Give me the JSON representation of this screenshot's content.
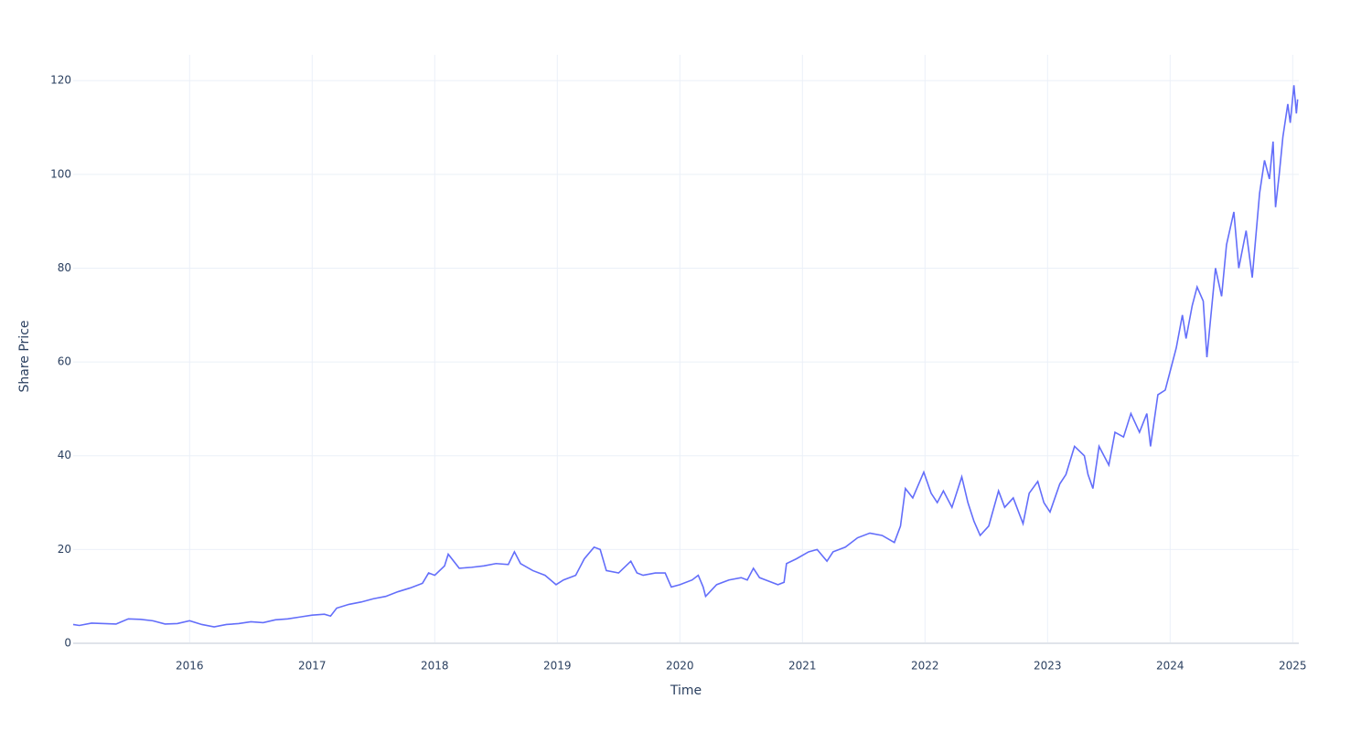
{
  "chart_data": {
    "type": "line",
    "x_label": "Time",
    "y_label": "Share Price",
    "xlim": [
      2015.05,
      2025.05
    ],
    "ylim": [
      0,
      125.5
    ],
    "xticks": [
      2016,
      2017,
      2018,
      2019,
      2020,
      2021,
      2022,
      2023,
      2024,
      2025
    ],
    "yticks": [
      0,
      20,
      40,
      60,
      80,
      100,
      120
    ],
    "grid": true,
    "x": [
      2015.05,
      2015.1,
      2015.2,
      2015.3,
      2015.4,
      2015.5,
      2015.6,
      2015.7,
      2015.8,
      2015.9,
      2016.0,
      2016.1,
      2016.2,
      2016.3,
      2016.4,
      2016.5,
      2016.6,
      2016.7,
      2016.8,
      2016.9,
      2017.0,
      2017.1,
      2017.15,
      2017.2,
      2017.3,
      2017.4,
      2017.5,
      2017.6,
      2017.7,
      2017.8,
      2017.9,
      2017.95,
      2018.0,
      2018.08,
      2018.11,
      2018.2,
      2018.3,
      2018.4,
      2018.5,
      2018.6,
      2018.65,
      2018.7,
      2018.8,
      2018.9,
      2018.99,
      2019.05,
      2019.15,
      2019.22,
      2019.3,
      2019.35,
      2019.4,
      2019.5,
      2019.6,
      2019.65,
      2019.7,
      2019.8,
      2019.88,
      2019.93,
      2020.0,
      2020.1,
      2020.15,
      2020.19,
      2020.21,
      2020.3,
      2020.4,
      2020.5,
      2020.55,
      2020.6,
      2020.65,
      2020.7,
      2020.8,
      2020.85,
      2020.87,
      2020.95,
      2021.05,
      2021.12,
      2021.2,
      2021.25,
      2021.35,
      2021.45,
      2021.55,
      2021.65,
      2021.75,
      2021.8,
      2021.84,
      2021.9,
      2021.99,
      2022.05,
      2022.1,
      2022.15,
      2022.22,
      2022.3,
      2022.35,
      2022.4,
      2022.45,
      2022.52,
      2022.6,
      2022.65,
      2022.72,
      2022.8,
      2022.85,
      2022.92,
      2022.97,
      2023.02,
      2023.1,
      2023.15,
      2023.22,
      2023.3,
      2023.33,
      2023.37,
      2023.42,
      2023.5,
      2023.55,
      2023.62,
      2023.68,
      2023.75,
      2023.81,
      2023.84,
      2023.9,
      2023.96,
      2024.0,
      2024.05,
      2024.1,
      2024.13,
      2024.18,
      2024.22,
      2024.27,
      2024.3,
      2024.37,
      2024.42,
      2024.46,
      2024.52,
      2024.56,
      2024.62,
      2024.67,
      2024.73,
      2024.77,
      2024.81,
      2024.84,
      2024.86,
      2024.89,
      2024.92,
      2024.96,
      2024.98,
      2025.01,
      2025.03,
      2025.04
    ],
    "series": [
      {
        "name": "Share Price",
        "color": "#636efa",
        "values": [
          4,
          3.8,
          4.3,
          4.2,
          4.1,
          5.2,
          5.1,
          4.8,
          4.1,
          4.2,
          4.8,
          4.0,
          3.5,
          4.0,
          4.2,
          4.6,
          4.4,
          5.0,
          5.2,
          5.6,
          6.0,
          6.2,
          5.8,
          7.5,
          8.3,
          8.8,
          9.5,
          10.0,
          11.0,
          11.8,
          12.8,
          15,
          14.5,
          16.5,
          19,
          16,
          16.2,
          16.5,
          17,
          16.8,
          19.5,
          17,
          15.5,
          14.5,
          12.5,
          13.5,
          14.5,
          18,
          20.5,
          20,
          15.5,
          15.0,
          17.5,
          15,
          14.5,
          15,
          15,
          12,
          12.5,
          13.5,
          14.5,
          12,
          10,
          12.5,
          13.5,
          14,
          13.5,
          16,
          14,
          13.5,
          12.5,
          13,
          17,
          18,
          19.5,
          20,
          17.5,
          19.5,
          20.5,
          22.5,
          23.5,
          23,
          21.5,
          25,
          33,
          31,
          36.5,
          32,
          30,
          32.5,
          29,
          35.5,
          30,
          26,
          23,
          25,
          32.5,
          29,
          31,
          25.5,
          32,
          34.5,
          30,
          28,
          34,
          36,
          42,
          40,
          36,
          33,
          42,
          38,
          45,
          44,
          49,
          45,
          49,
          42,
          53,
          54,
          58,
          63,
          70,
          65,
          72,
          76,
          73,
          61,
          80,
          74,
          85,
          92,
          80,
          88,
          78,
          96,
          103,
          99,
          107,
          93,
          100,
          108,
          115,
          111,
          119,
          113,
          116
        ]
      }
    ]
  }
}
